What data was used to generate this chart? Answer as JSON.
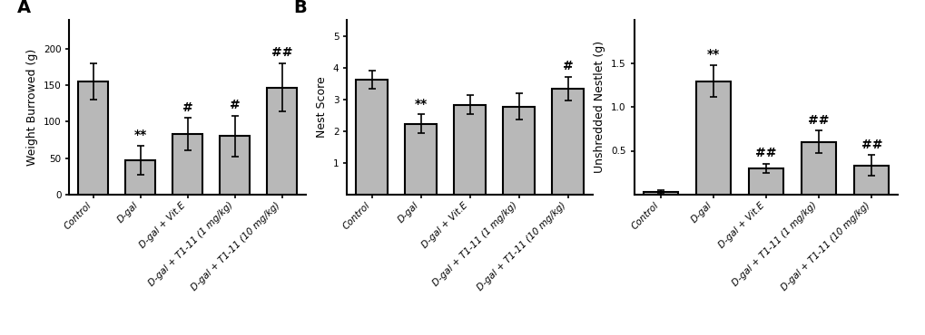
{
  "panel_A": {
    "label": "A",
    "categories": [
      "Control",
      "D-gal",
      "D-gal + Vit.E",
      "D-gal + T1-11 (1 mg/kg)",
      "D-gal + T1-11 (10 mg/kg)"
    ],
    "values": [
      155,
      47,
      83,
      80,
      147
    ],
    "errors": [
      25,
      20,
      22,
      28,
      33
    ],
    "ylabel": "Weight Burrowed (g)",
    "ylim": [
      0,
      240
    ],
    "yticks": [
      0,
      50,
      100,
      150,
      200
    ],
    "annotations": [
      "",
      "**",
      "#",
      "#",
      "##"
    ]
  },
  "panel_B1": {
    "label": "B",
    "categories": [
      "Control",
      "D-gal",
      "D-gal + Vit.E",
      "D-gal + T1-11 (1 mg/kg)",
      "D-gal + T1-11 (10 mg/kg)"
    ],
    "values": [
      3.62,
      2.22,
      2.83,
      2.77,
      3.33
    ],
    "errors": [
      0.28,
      0.3,
      0.3,
      0.42,
      0.38
    ],
    "ylabel": "Nest Score",
    "ylim": [
      0,
      5.5
    ],
    "yticks": [
      1,
      2,
      3,
      4,
      5
    ],
    "annotations": [
      "",
      "**",
      "",
      "",
      "#"
    ]
  },
  "panel_B2": {
    "label": "",
    "categories": [
      "Control",
      "D-gal",
      "D-gal + Vit.E",
      "D-gal + T1-11 (1 mg/kg)",
      "D-gal + T1-11 (10 mg/kg)"
    ],
    "values": [
      0.03,
      1.3,
      0.3,
      0.6,
      0.33
    ],
    "errors": [
      0.02,
      0.18,
      0.05,
      0.13,
      0.12
    ],
    "ylabel": "Unshredded Nestlet (g)",
    "ylim": [
      0,
      2.0
    ],
    "yticks": [
      0.5,
      1.0,
      1.5
    ],
    "annotations": [
      "",
      "**",
      "##",
      "##",
      "##"
    ]
  },
  "bar_color": "#b8b8b8",
  "bar_edgecolor": "#000000",
  "bar_linewidth": 1.5,
  "error_capsize": 3,
  "error_linewidth": 1.2,
  "background_color": "#ffffff",
  "annotation_fontsize": 9,
  "ylabel_fontsize": 9,
  "tick_fontsize": 7.5,
  "panel_label_fontsize": 14
}
